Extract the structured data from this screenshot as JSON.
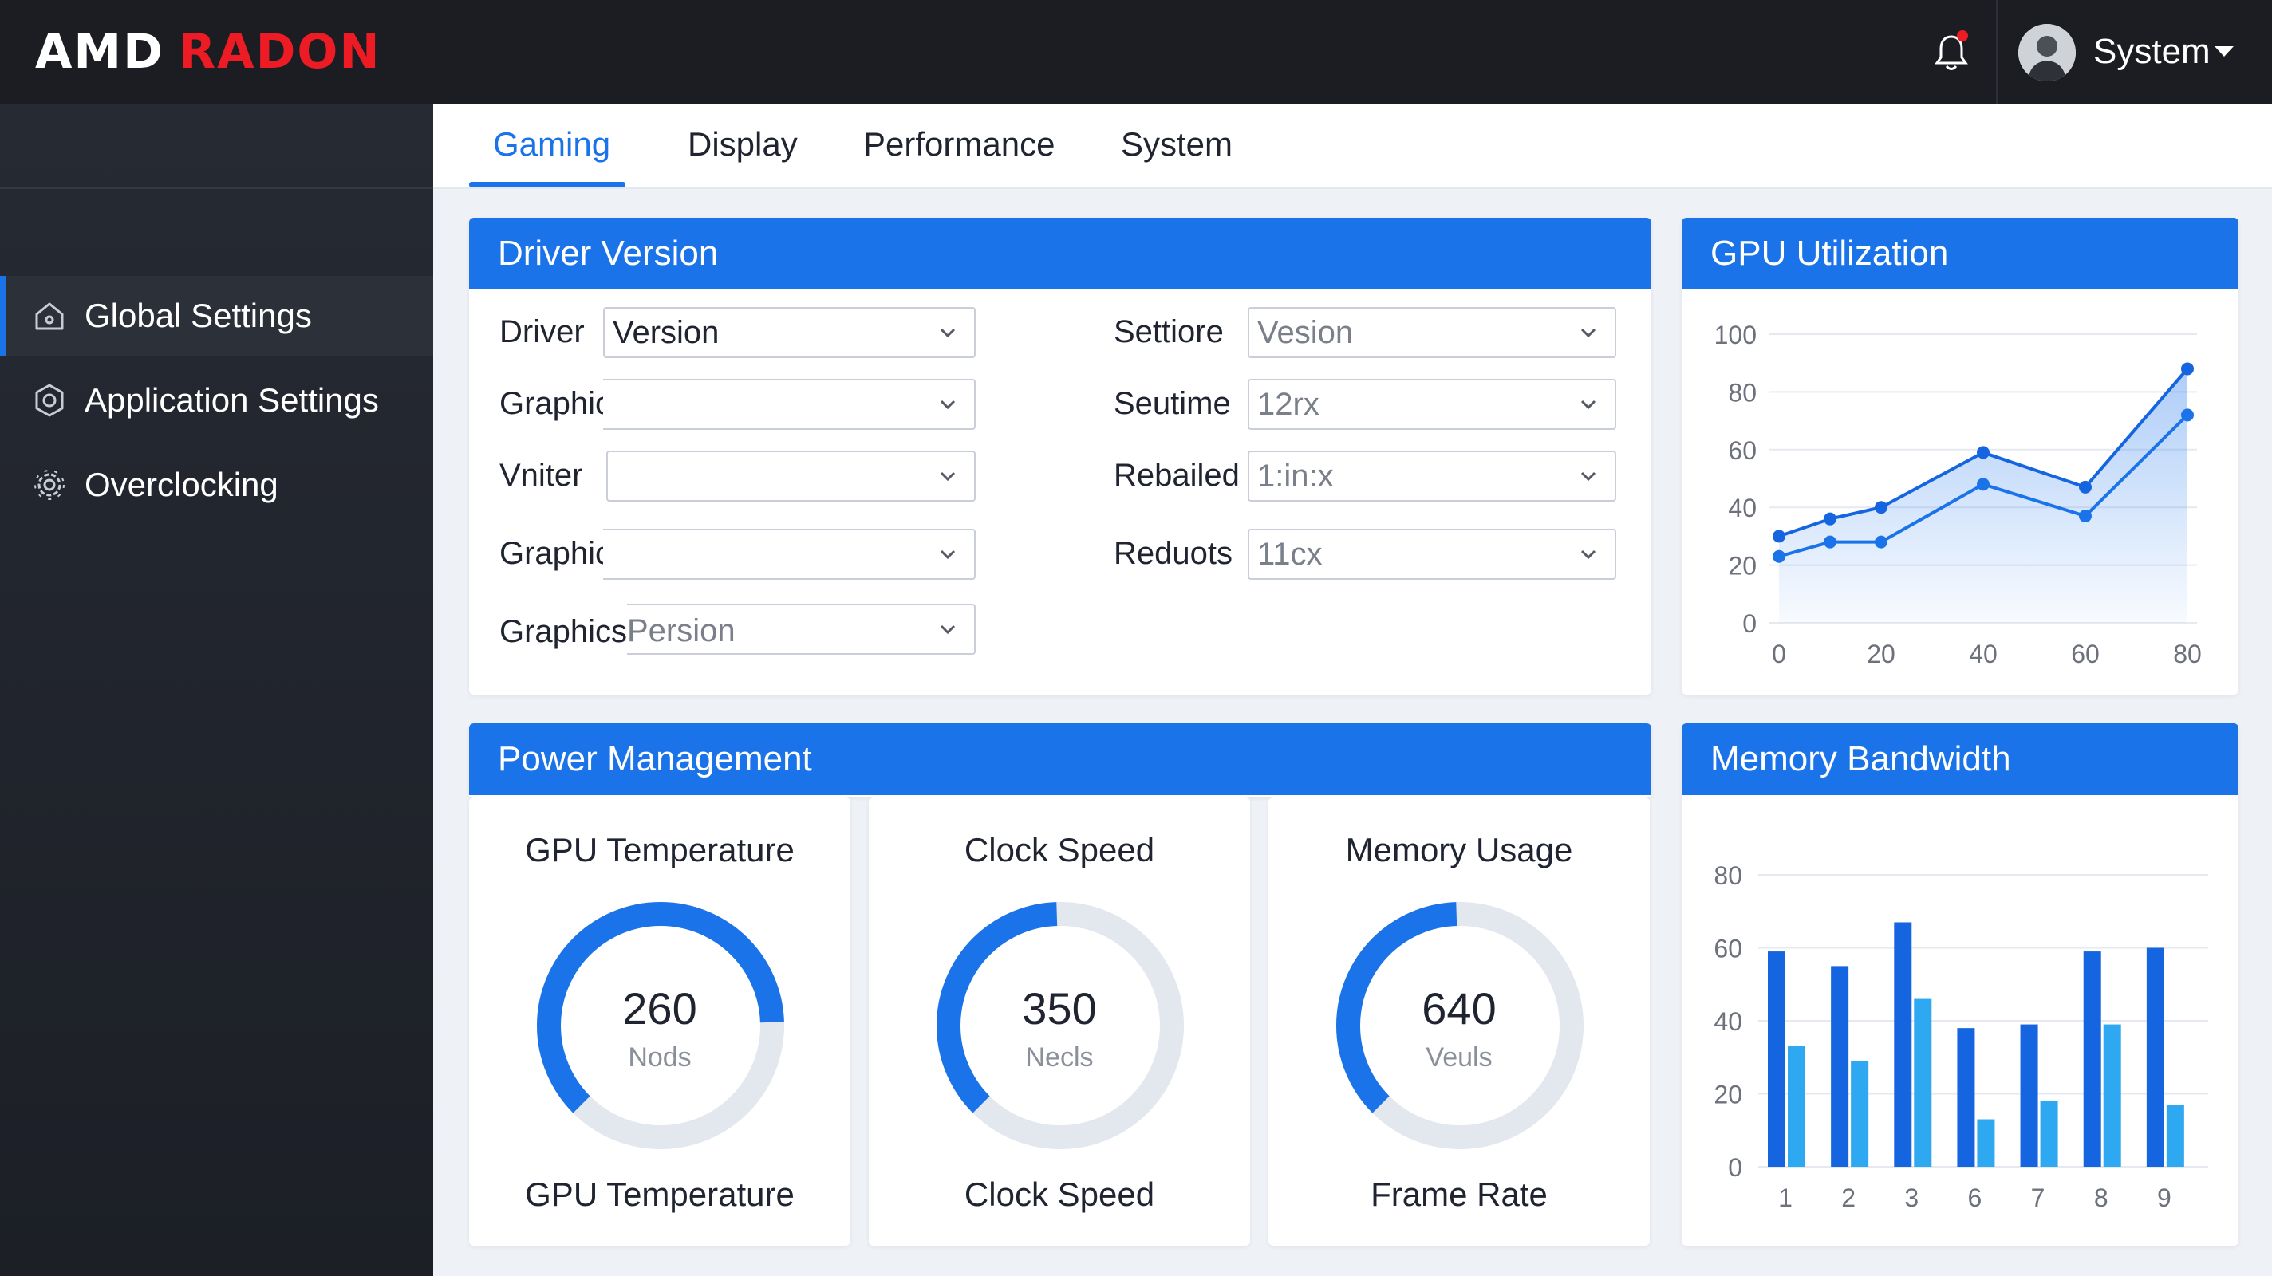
{
  "brand": {
    "part1": "AMD",
    "part2": "RADON"
  },
  "header": {
    "user_name": "System",
    "icons": [
      "bell-icon",
      "chevron-down-icon"
    ]
  },
  "sidebar": {
    "items": [
      {
        "label": "Global Settings",
        "icon": "home-icon",
        "active": true
      },
      {
        "label": "Application Settings",
        "icon": "hexagon-gear-icon",
        "active": false
      },
      {
        "label": "Overclocking",
        "icon": "gear-icon",
        "active": false
      }
    ]
  },
  "tabs": [
    {
      "label": "Gaming",
      "active": true
    },
    {
      "label": "Display",
      "active": false
    },
    {
      "label": "Performance",
      "active": false
    },
    {
      "label": "System",
      "active": false
    }
  ],
  "driver_card": {
    "title": "Driver Version",
    "left_rows": [
      {
        "label": "Driver",
        "value": "Version"
      },
      {
        "label": "Graphics Profile",
        "value": ""
      },
      {
        "label": "Vniter",
        "value": ""
      },
      {
        "label": "Graphics Profile",
        "value": ""
      },
      {
        "label": "Graphics",
        "value": "Persion"
      }
    ],
    "right_rows": [
      {
        "label": "Settiore",
        "value": "Vesion"
      },
      {
        "label": "Seutime",
        "value": "12rx"
      },
      {
        "label": "Rebailed",
        "value": "1:in:x"
      },
      {
        "label": "Reduots",
        "value": "11cx"
      }
    ]
  },
  "power_card": {
    "title": "Power Management",
    "gauges": [
      {
        "title": "GPU Temperature",
        "value": "260",
        "unit": "Nods",
        "footer": "GPU Temperature",
        "fraction": 0.62
      },
      {
        "title": "Clock Speed",
        "value": "350",
        "unit": "Necls",
        "footer": "Clock Speed",
        "fraction": 0.37
      },
      {
        "title": "Memory Usage",
        "value": "640",
        "unit": "Veuls",
        "footer": "Frame Rate",
        "fraction": 0.37
      }
    ],
    "colors": {
      "arc": "#1a73e8",
      "track": "#e3e7ee"
    }
  },
  "gpu_util": {
    "title": "GPU Utilization",
    "chart_data": {
      "type": "line",
      "x": [
        0,
        10,
        20,
        40,
        60,
        80
      ],
      "series": [
        {
          "values": [
            30,
            36,
            40,
            59,
            47,
            88
          ]
        },
        {
          "values": [
            23,
            28,
            28,
            48,
            37,
            72
          ]
        }
      ],
      "x_ticks": [
        0,
        20,
        40,
        60,
        80
      ],
      "y_ticks": [
        0,
        20,
        40,
        60,
        80,
        100
      ],
      "xlim": [
        0,
        80
      ],
      "ylim": [
        0,
        100
      ],
      "grid": true
    }
  },
  "mem_bw": {
    "title": "Memory Bandwidth",
    "chart_data": {
      "type": "bar",
      "categories": [
        "1",
        "2",
        "3",
        "6",
        "7",
        "8",
        "9"
      ],
      "series": [
        {
          "values": [
            59,
            55,
            67,
            38,
            39,
            59,
            60
          ]
        },
        {
          "values": [
            33,
            29,
            46,
            13,
            18,
            39,
            17
          ]
        }
      ],
      "y_ticks": [
        0,
        20,
        40,
        60,
        80
      ],
      "ylim": [
        0,
        80
      ],
      "grid": true,
      "colors": [
        "#1565e0",
        "#2ea8f0"
      ]
    }
  }
}
